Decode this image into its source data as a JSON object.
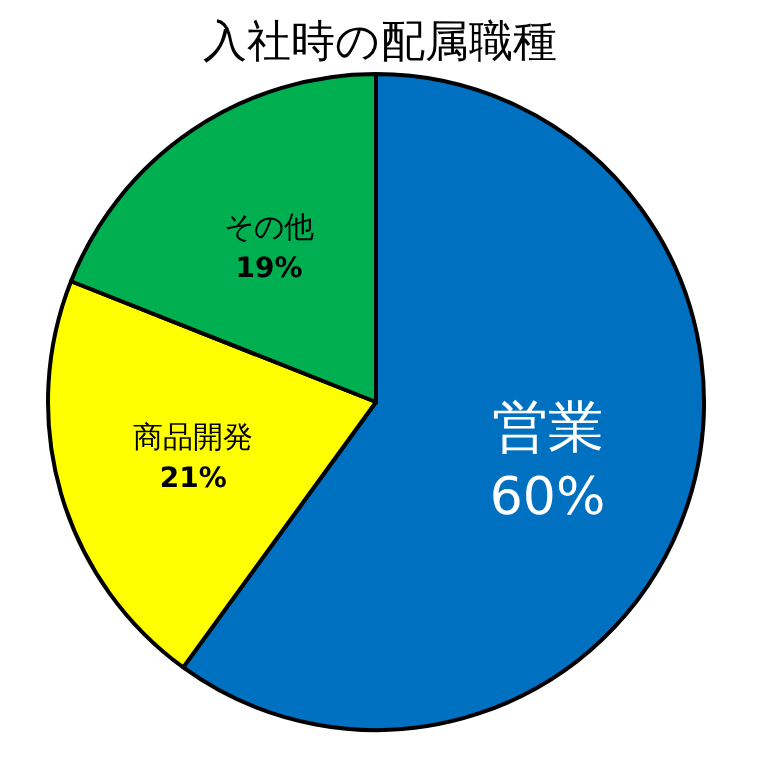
{
  "chart_data": {
    "type": "pie",
    "title": "入社時の配属職種",
    "categories": [
      "営業",
      "商品開発",
      "その他"
    ],
    "values": [
      60,
      21,
      19
    ],
    "colors": [
      "#0070c0",
      "#ffff00",
      "#00b050"
    ],
    "value_labels": [
      "60%",
      "21%",
      "19%"
    ]
  }
}
